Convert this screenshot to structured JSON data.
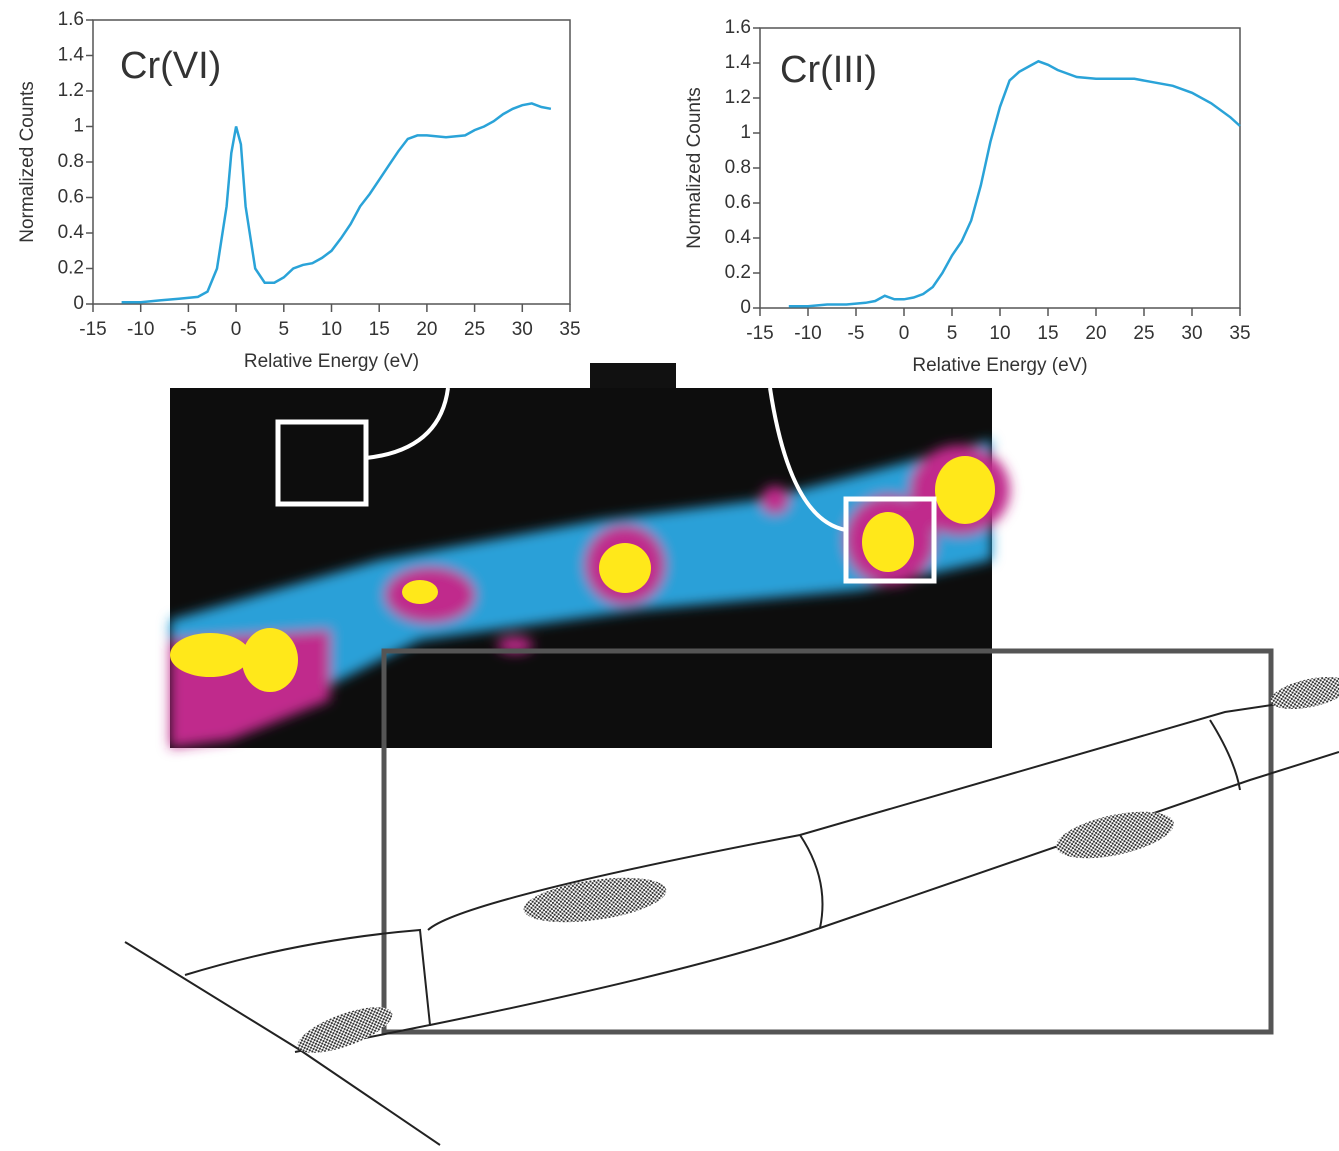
{
  "chart_data": [
    {
      "type": "line",
      "title": "Cr(VI)",
      "x_label": "Relative Energy (eV)",
      "y_label": "Normalized Counts",
      "color": "#2aa3d8",
      "x": [
        -12,
        -10,
        -8,
        -6,
        -4,
        -3,
        -2,
        -1,
        -0.5,
        0,
        0.5,
        1,
        2,
        3,
        4,
        5,
        6,
        7,
        8,
        9,
        10,
        11,
        12,
        13,
        14,
        15,
        16,
        17,
        18,
        19,
        20,
        22,
        24,
        25,
        26,
        27,
        28,
        29,
        30,
        31,
        32,
        33
      ],
      "values": [
        0.01,
        0.01,
        0.02,
        0.03,
        0.04,
        0.07,
        0.2,
        0.55,
        0.85,
        1.0,
        0.9,
        0.55,
        0.2,
        0.12,
        0.12,
        0.15,
        0.2,
        0.22,
        0.23,
        0.26,
        0.3,
        0.37,
        0.45,
        0.55,
        0.62,
        0.7,
        0.78,
        0.86,
        0.93,
        0.95,
        0.95,
        0.94,
        0.95,
        0.98,
        1.0,
        1.03,
        1.07,
        1.1,
        1.12,
        1.13,
        1.11,
        1.1
      ],
      "xlim": [
        -15,
        35
      ],
      "ylim": [
        0,
        1.6
      ],
      "xticks": [
        -15,
        -10,
        -5,
        0,
        5,
        10,
        15,
        20,
        25,
        30,
        35
      ],
      "yticks": [
        0,
        0.2,
        0.4,
        0.6,
        0.8,
        1,
        1.2,
        1.4,
        1.6
      ]
    },
    {
      "type": "line",
      "title": "Cr(III)",
      "x_label": "Relative Energy (eV)",
      "y_label": "Normalized Counts",
      "color": "#2aa3d8",
      "x": [
        -12,
        -10,
        -8,
        -6,
        -4,
        -3,
        -2,
        -1,
        0,
        1,
        2,
        3,
        4,
        5,
        6,
        7,
        8,
        9,
        10,
        11,
        12,
        13,
        14,
        15,
        16,
        18,
        20,
        22,
        24,
        26,
        28,
        30,
        32,
        34,
        35
      ],
      "values": [
        0.01,
        0.01,
        0.02,
        0.02,
        0.03,
        0.04,
        0.07,
        0.05,
        0.05,
        0.06,
        0.08,
        0.12,
        0.2,
        0.3,
        0.38,
        0.5,
        0.7,
        0.95,
        1.15,
        1.3,
        1.35,
        1.38,
        1.41,
        1.39,
        1.36,
        1.32,
        1.31,
        1.31,
        1.31,
        1.29,
        1.27,
        1.23,
        1.17,
        1.09,
        1.04
      ],
      "xlim": [
        -15,
        35
      ],
      "ylim": [
        0,
        1.6
      ],
      "xticks": [
        -15,
        -10,
        -5,
        0,
        5,
        10,
        15,
        20,
        25,
        30,
        35
      ],
      "yticks": [
        0,
        0.2,
        0.4,
        0.6,
        0.8,
        1,
        1.2,
        1.4,
        1.6
      ]
    }
  ]
}
